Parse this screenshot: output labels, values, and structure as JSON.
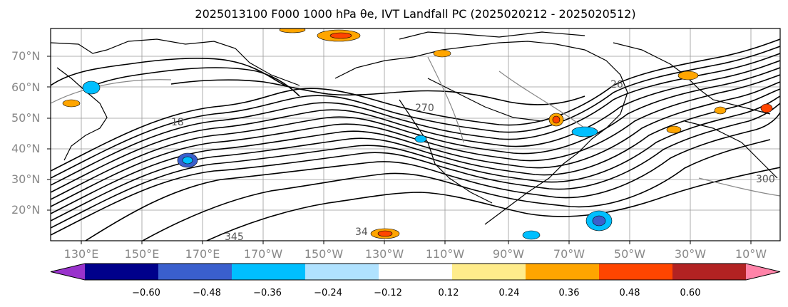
{
  "map": {
    "title": "2025013100 F000 1000 hPa θe, IVT Landfall PC (2025020212 - 2025020512)",
    "lat_labels": [
      "70°N",
      "60°N",
      "50°N",
      "40°N",
      "30°N",
      "20°N"
    ],
    "lon_labels": [
      "130°E",
      "150°E",
      "170°E",
      "170°W",
      "150°W",
      "130°W",
      "110°W",
      "90°W",
      "70°W",
      "50°W",
      "30°W",
      "10°W"
    ],
    "contour_labels": [
      "345",
      "34",
      "270",
      "18",
      "26",
      "300"
    ],
    "colorbar": {
      "colors": [
        "#9932cc",
        "#00008b",
        "#3a5fcd",
        "#00bfff",
        "#b0e2ff",
        "#ffffff",
        "#ffec8b",
        "#ffa500",
        "#ff4500",
        "#b22222",
        "#ff83a8"
      ],
      "ticks": [
        "−0.60",
        "−0.48",
        "−0.36",
        "−0.24",
        "−0.12",
        "0.12",
        "0.24",
        "0.36",
        "0.48",
        "0.60"
      ]
    }
  }
}
